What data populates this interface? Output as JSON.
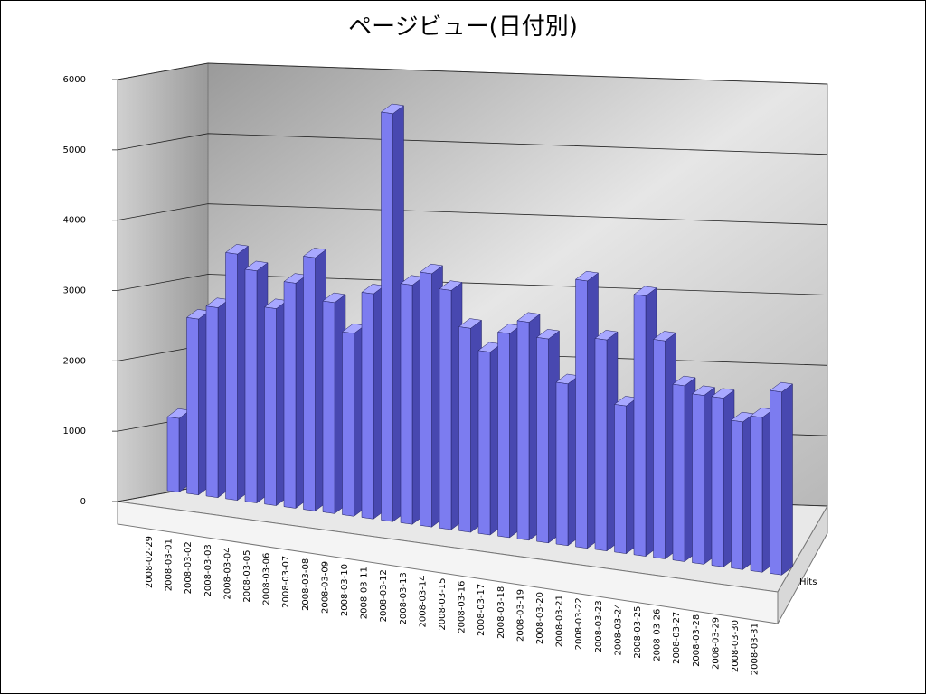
{
  "chart_data": {
    "type": "bar",
    "title": "ページビュー(日付別)",
    "categories": [
      "2008-02-29",
      "2008-03-01",
      "2008-03-02",
      "2008-03-03",
      "2008-03-04",
      "2008-03-05",
      "2008-03-06",
      "2008-03-07",
      "2008-03-08",
      "2008-03-09",
      "2008-03-10",
      "2008-03-11",
      "2008-03-12",
      "2008-03-13",
      "2008-03-14",
      "2008-03-15",
      "2008-03-16",
      "2008-03-17",
      "2008-03-18",
      "2008-03-19",
      "2008-03-20",
      "2008-03-21",
      "2008-03-22",
      "2008-03-23",
      "2008-03-24",
      "2008-03-25",
      "2008-03-26",
      "2008-03-27",
      "2008-03-28",
      "2008-03-29",
      "2008-03-30",
      "2008-03-31"
    ],
    "series": [
      {
        "name": "Hits",
        "color": "#7c7cf0",
        "values": [
          1050,
          2500,
          2700,
          3500,
          3300,
          2800,
          3200,
          3600,
          3000,
          2600,
          3200,
          5800,
          3400,
          3600,
          3400,
          2900,
          2600,
          2900,
          3100,
          2900,
          2300,
          3800,
          3000,
          2100,
          3700,
          3100,
          2500,
          2400,
          2400,
          2100,
          2200,
          2600
        ]
      }
    ],
    "ylim": [
      0,
      6000
    ],
    "yticks": [
      0,
      1000,
      2000,
      3000,
      4000,
      5000,
      6000
    ],
    "grid": true
  }
}
